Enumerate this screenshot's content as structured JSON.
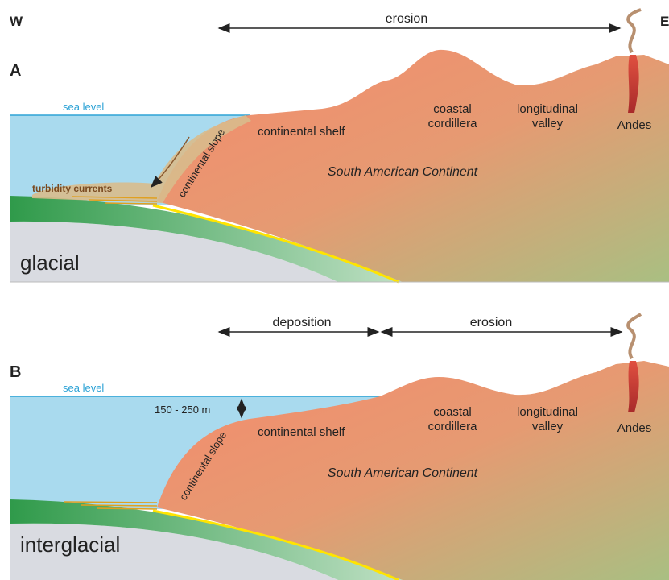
{
  "header": {
    "west": "W",
    "east": "E"
  },
  "panels": [
    {
      "label": "A",
      "arrows": [
        "erosion"
      ],
      "sea_level": "sea level",
      "continental_shelf": "continental shelf",
      "continental_slope": "continental slope",
      "coastal_cordillera": [
        "coastal",
        "cordillera"
      ],
      "longitudinal_valley": [
        "longitudinal",
        "valley"
      ],
      "andes": "Andes",
      "continent": "South American Continent",
      "turbidity": "turbidity currents",
      "period": "glacial"
    },
    {
      "label": "B",
      "arrows": [
        "deposition",
        "erosion"
      ],
      "sea_level": "sea level",
      "depth": "150 - 250 m",
      "continental_shelf": "continental shelf",
      "continental_slope": "continental slope",
      "coastal_cordillera": [
        "coastal",
        "cordillera"
      ],
      "longitudinal_valley": [
        "longitudinal",
        "valley"
      ],
      "andes": "Andes",
      "continent": "South American Continent",
      "period": "interglacial"
    }
  ]
}
